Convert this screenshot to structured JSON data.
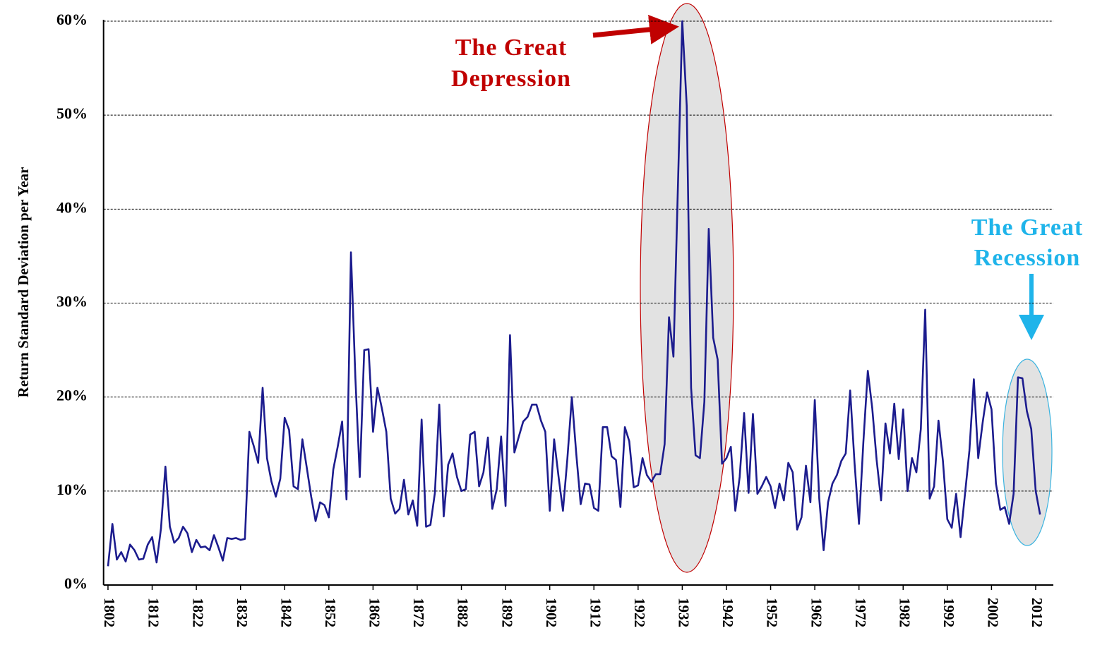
{
  "chart_data": {
    "type": "line",
    "y_label": "Return Standard Deviation per Year",
    "annotations": [
      {
        "lines": [
          "The Great",
          "Depression"
        ],
        "color": "#c00000"
      },
      {
        "lines": [
          "The Great",
          "Recession"
        ],
        "color": "#1fb4ea"
      }
    ],
    "xlim": [
      1801,
      2016
    ],
    "xticks": [
      1802,
      1812,
      1822,
      1832,
      1842,
      1852,
      1862,
      1872,
      1882,
      1892,
      1902,
      1912,
      1922,
      1932,
      1942,
      1952,
      1962,
      1972,
      1982,
      1992,
      2002,
      2012
    ],
    "ylim": [
      0,
      60
    ],
    "yticks": [
      {
        "value": 0,
        "label": "0%"
      },
      {
        "value": 10,
        "label": "10%"
      },
      {
        "value": 20,
        "label": "20%"
      },
      {
        "value": 30,
        "label": "30%"
      },
      {
        "value": 40,
        "label": "40%"
      },
      {
        "value": 50,
        "label": "50%"
      },
      {
        "value": 60,
        "label": "60%"
      }
    ],
    "grid": true,
    "x": [
      1802,
      1803,
      1804,
      1805,
      1806,
      1807,
      1808,
      1809,
      1810,
      1811,
      1812,
      1813,
      1814,
      1815,
      1816,
      1817,
      1818,
      1819,
      1820,
      1821,
      1822,
      1823,
      1824,
      1825,
      1826,
      1827,
      1828,
      1829,
      1830,
      1831,
      1832,
      1833,
      1834,
      1835,
      1836,
      1837,
      1838,
      1839,
      1840,
      1841,
      1842,
      1843,
      1844,
      1845,
      1846,
      1847,
      1848,
      1849,
      1850,
      1851,
      1852,
      1853,
      1854,
      1855,
      1856,
      1857,
      1858,
      1859,
      1860,
      1861,
      1862,
      1863,
      1864,
      1865,
      1866,
      1867,
      1868,
      1869,
      1870,
      1871,
      1872,
      1873,
      1874,
      1875,
      1876,
      1877,
      1878,
      1879,
      1880,
      1881,
      1882,
      1883,
      1884,
      1885,
      1886,
      1887,
      1888,
      1889,
      1890,
      1891,
      1892,
      1893,
      1894,
      1895,
      1896,
      1897,
      1898,
      1899,
      1900,
      1901,
      1902,
      1903,
      1904,
      1905,
      1906,
      1907,
      1908,
      1909,
      1910,
      1911,
      1912,
      1913,
      1914,
      1915,
      1916,
      1917,
      1918,
      1919,
      1920,
      1921,
      1922,
      1923,
      1924,
      1925,
      1926,
      1927,
      1928,
      1929,
      1930,
      1931,
      1932,
      1933,
      1934,
      1935,
      1936,
      1937,
      1938,
      1939,
      1940,
      1941,
      1942,
      1943,
      1944,
      1945,
      1946,
      1947,
      1948,
      1949,
      1950,
      1951,
      1952,
      1953,
      1954,
      1955,
      1956,
      1957,
      1958,
      1959,
      1960,
      1961,
      1962,
      1963,
      1964,
      1965,
      1966,
      1967,
      1968,
      1969,
      1970,
      1971,
      1972,
      1973,
      1974,
      1975,
      1976,
      1977,
      1978,
      1979,
      1980,
      1981,
      1982,
      1983,
      1984,
      1985,
      1986,
      1987,
      1988,
      1989,
      1990,
      1991,
      1992,
      1993,
      1994,
      1995,
      1996,
      1997,
      1998,
      1999,
      2000,
      2001,
      2002,
      2003,
      2004,
      2005,
      2006,
      2007,
      2008,
      2009,
      2010,
      2011,
      2012,
      2013
    ],
    "series": [
      {
        "color": "#1c1c8e",
        "values": [
          2,
          6.5,
          2.7,
          3.5,
          2.5,
          4.3,
          3.7,
          2.7,
          2.8,
          4.3,
          5.1,
          2.4,
          6,
          12.6,
          6.2,
          4.5,
          5,
          6.2,
          5.5,
          3.5,
          4.8,
          4,
          4.1,
          3.7,
          5.3,
          4,
          2.6,
          5,
          4.9,
          5,
          4.8,
          4.9,
          16.3,
          14.8,
          13,
          21,
          13.5,
          11,
          9.4,
          11.3,
          17.8,
          16.5,
          10.5,
          10.2,
          15.5,
          12.5,
          9.4,
          6.8,
          8.8,
          8.5,
          7.2,
          12.3,
          14.7,
          17.4,
          9.1,
          35.4,
          22,
          11.5,
          25,
          25.1,
          16.3,
          21,
          18.8,
          16.3,
          9.2,
          7.6,
          8.1,
          11.2,
          7.5,
          9,
          6.3,
          17.6,
          6.2,
          6.4,
          9.8,
          19.2,
          7.3,
          12.8,
          14,
          11.5,
          10,
          10.2,
          16,
          16.3,
          10.5,
          12,
          15.7,
          8.1,
          10.2,
          15.8,
          8.4,
          26.6,
          14.1,
          15.8,
          17.4,
          17.9,
          19.2,
          19.2,
          17.5,
          16.3,
          7.9,
          15.5,
          11.5,
          7.9,
          13.5,
          20,
          14,
          8.6,
          10.8,
          10.7,
          8.2,
          7.9,
          16.8,
          16.8,
          13.7,
          13.3,
          8.3,
          16.8,
          15.3,
          10.4,
          10.6,
          13.5,
          11.7,
          11,
          11.8,
          11.8,
          15,
          28.5,
          24.3,
          42,
          60,
          51,
          21,
          13.8,
          13.5,
          19.5,
          37.9,
          26.3,
          24,
          12.9,
          13.5,
          14.7,
          7.9,
          11.5,
          18.3,
          9.8,
          18.2,
          9.7,
          10.5,
          11.5,
          10.5,
          8.2,
          10.8,
          9,
          13,
          12,
          5.9,
          7.2,
          12.7,
          8.8,
          19.7,
          9.2,
          3.7,
          8.8,
          10.8,
          11.7,
          13.2,
          14,
          20.7,
          13,
          6.5,
          15.2,
          22.8,
          18.8,
          13.3,
          9,
          17.2,
          14,
          19.3,
          13.4,
          18.7,
          10,
          13.5,
          12,
          16.6,
          29.3,
          9.2,
          10.5,
          17.5,
          13.2,
          7,
          6.1,
          9.7,
          5.1,
          9.7,
          14.3,
          21.9,
          13.5,
          17.3,
          20.5,
          18.7,
          10.8,
          8,
          8.3,
          6.5,
          9.7,
          22.1,
          22,
          18.5,
          16.6,
          10,
          7.5
        ]
      }
    ]
  }
}
